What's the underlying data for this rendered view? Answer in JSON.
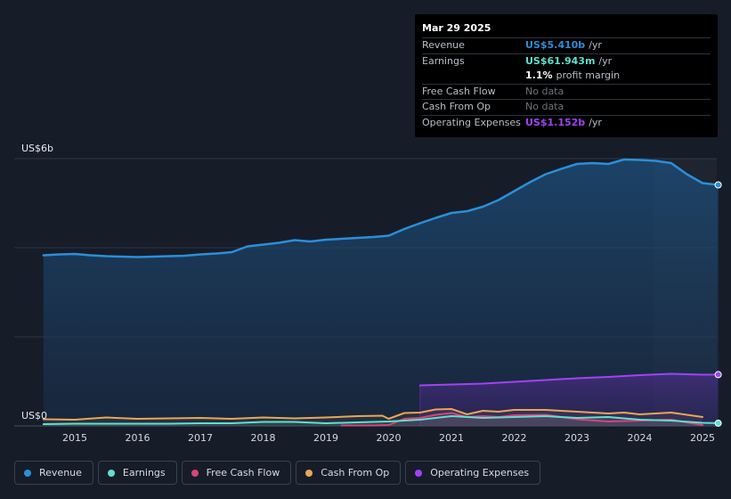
{
  "tooltip": {
    "date": "Mar 29 2025",
    "rows": {
      "revenue": {
        "label": "Revenue",
        "value": "US$5.410b",
        "unit": "/yr",
        "color": "#2c8ed9"
      },
      "earnings": {
        "label": "Earnings",
        "value": "US$61.943m",
        "unit": "/yr",
        "color": "#5fe0d0"
      },
      "margin": {
        "value": "1.1%",
        "unit": "profit margin"
      },
      "fcf": {
        "label": "Free Cash Flow",
        "value": "No data"
      },
      "cfo": {
        "label": "Cash From Op",
        "value": "No data"
      },
      "opex": {
        "label": "Operating Expenses",
        "value": "US$1.152b",
        "unit": "/yr",
        "color": "#a142f4"
      }
    }
  },
  "legend": [
    {
      "label": "Revenue",
      "color": "#2c8ed9"
    },
    {
      "label": "Earnings",
      "color": "#5fe0d0"
    },
    {
      "label": "Free Cash Flow",
      "color": "#d6457a"
    },
    {
      "label": "Cash From Op",
      "color": "#e8a658"
    },
    {
      "label": "Operating Expenses",
      "color": "#a142f4"
    }
  ],
  "chart_data": {
    "type": "area",
    "y_unit_label": "US$6b",
    "y_zero_label": "US$0",
    "ylim": [
      0,
      6
    ],
    "xlim": [
      2014.5,
      2025.25
    ],
    "x_ticks": [
      "2015",
      "2016",
      "2017",
      "2018",
      "2019",
      "2020",
      "2021",
      "2022",
      "2023",
      "2024",
      "2025"
    ],
    "series": [
      {
        "name": "Revenue",
        "color": "#2c8ed9",
        "x": [
          2014.5,
          2014.75,
          2015.0,
          2015.25,
          2015.5,
          2015.75,
          2016.0,
          2016.25,
          2016.5,
          2016.75,
          2017.0,
          2017.25,
          2017.5,
          2017.75,
          2018.0,
          2018.25,
          2018.5,
          2018.75,
          2019.0,
          2019.25,
          2019.5,
          2019.75,
          2020.0,
          2020.25,
          2020.5,
          2020.75,
          2021.0,
          2021.25,
          2021.5,
          2021.75,
          2022.0,
          2022.25,
          2022.5,
          2022.75,
          2023.0,
          2023.25,
          2023.5,
          2023.75,
          2024.0,
          2024.25,
          2024.5,
          2024.75,
          2025.0,
          2025.25
        ],
        "values": [
          3.83,
          3.85,
          3.86,
          3.83,
          3.81,
          3.8,
          3.79,
          3.8,
          3.81,
          3.82,
          3.85,
          3.87,
          3.9,
          4.03,
          4.07,
          4.11,
          4.17,
          4.14,
          4.18,
          4.2,
          4.22,
          4.24,
          4.27,
          4.42,
          4.55,
          4.67,
          4.78,
          4.82,
          4.92,
          5.07,
          5.27,
          5.47,
          5.65,
          5.77,
          5.88,
          5.9,
          5.88,
          5.98,
          5.97,
          5.95,
          5.9,
          5.65,
          5.45,
          5.41
        ]
      },
      {
        "name": "Operating Expenses",
        "color": "#a142f4",
        "x": [
          2020.5,
          2021.0,
          2021.5,
          2022.0,
          2022.5,
          2023.0,
          2023.5,
          2024.0,
          2024.5,
          2025.0,
          2025.25
        ],
        "values": [
          0.91,
          0.93,
          0.95,
          0.99,
          1.03,
          1.07,
          1.1,
          1.14,
          1.17,
          1.15,
          1.152
        ]
      },
      {
        "name": "Cash From Op",
        "color": "#e8a658",
        "x": [
          2014.5,
          2015.0,
          2015.5,
          2016.0,
          2016.5,
          2017.0,
          2017.5,
          2018.0,
          2018.5,
          2019.0,
          2019.5,
          2019.9,
          2020.0,
          2020.25,
          2020.5,
          2020.75,
          2021.0,
          2021.25,
          2021.5,
          2021.75,
          2022.0,
          2022.5,
          2023.0,
          2023.5,
          2023.75,
          2024.0,
          2024.5,
          2025.0
        ],
        "values": [
          0.15,
          0.14,
          0.19,
          0.16,
          0.17,
          0.18,
          0.16,
          0.19,
          0.17,
          0.19,
          0.22,
          0.23,
          0.16,
          0.29,
          0.3,
          0.37,
          0.38,
          0.26,
          0.34,
          0.32,
          0.36,
          0.36,
          0.32,
          0.28,
          0.3,
          0.26,
          0.3,
          0.2
        ]
      },
      {
        "name": "Free Cash Flow",
        "color": "#d6457a",
        "x": [
          2019.25,
          2019.75,
          2020.0,
          2020.25,
          2020.5,
          2020.75,
          2021.0,
          2021.25,
          2021.5,
          2021.75,
          2022.0,
          2022.5,
          2023.0,
          2023.5,
          2024.0,
          2024.5,
          2025.0
        ],
        "values": [
          0.01,
          0.01,
          0.02,
          0.16,
          0.18,
          0.25,
          0.29,
          0.2,
          0.22,
          0.2,
          0.24,
          0.25,
          0.15,
          0.1,
          0.12,
          0.14,
          0.02
        ]
      },
      {
        "name": "Earnings",
        "color": "#5fe0d0",
        "x": [
          2014.5,
          2015.0,
          2015.5,
          2016.0,
          2016.5,
          2017.0,
          2017.5,
          2018.0,
          2018.5,
          2019.0,
          2019.5,
          2020.0,
          2020.5,
          2021.0,
          2021.5,
          2022.0,
          2022.5,
          2023.0,
          2023.5,
          2024.0,
          2024.5,
          2025.0,
          2025.25
        ],
        "values": [
          0.04,
          0.05,
          0.05,
          0.05,
          0.05,
          0.06,
          0.06,
          0.09,
          0.09,
          0.06,
          0.08,
          0.1,
          0.14,
          0.22,
          0.18,
          0.2,
          0.22,
          0.18,
          0.2,
          0.14,
          0.12,
          0.07,
          0.062
        ]
      }
    ]
  }
}
